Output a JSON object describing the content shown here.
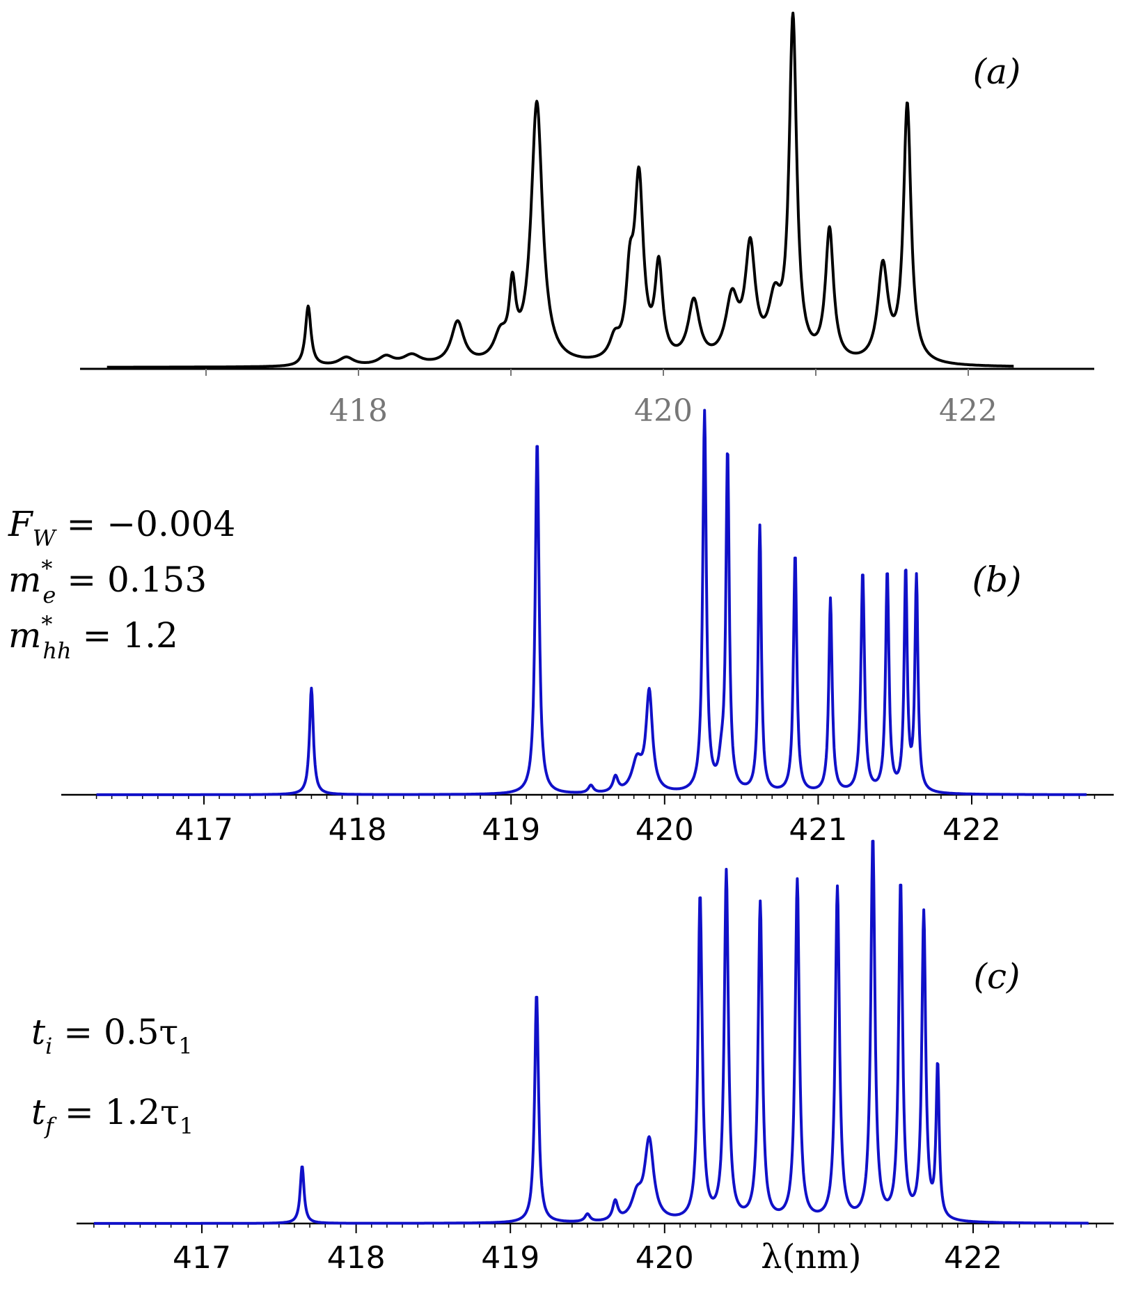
{
  "chart_data": [
    {
      "panel": "a",
      "type": "line",
      "label": "(a)",
      "color": "#000000",
      "tick_color": "#777777",
      "xlim": [
        416.2,
        422.9
      ],
      "ylim": [
        0,
        1.0
      ],
      "x_ticks": [
        417,
        418,
        419,
        420,
        421,
        422
      ],
      "x_tick_labels": [
        "",
        "418",
        "",
        "420",
        "",
        "422"
      ],
      "peaks": [
        [
          417.67,
          0.17,
          0.022
        ],
        [
          417.92,
          0.024,
          0.06
        ],
        [
          418.18,
          0.025,
          0.06
        ],
        [
          418.35,
          0.028,
          0.07
        ],
        [
          418.65,
          0.12,
          0.05
        ],
        [
          418.93,
          0.07,
          0.05
        ],
        [
          419.01,
          0.19,
          0.025
        ],
        [
          419.17,
          0.74,
          0.045
        ],
        [
          419.68,
          0.055,
          0.04
        ],
        [
          419.78,
          0.2,
          0.03
        ],
        [
          419.84,
          0.5,
          0.035
        ],
        [
          419.97,
          0.26,
          0.03
        ],
        [
          420.2,
          0.17,
          0.045
        ],
        [
          420.45,
          0.17,
          0.05
        ],
        [
          420.57,
          0.31,
          0.04
        ],
        [
          420.73,
          0.15,
          0.05
        ],
        [
          420.85,
          0.96,
          0.03
        ],
        [
          421.09,
          0.37,
          0.032
        ],
        [
          421.44,
          0.27,
          0.04
        ],
        [
          421.6,
          0.73,
          0.03
        ]
      ],
      "baseline": 0.004
    },
    {
      "panel": "b",
      "type": "line",
      "label": "(b)",
      "color": "#1010c8",
      "xlim": [
        416.2,
        422.9
      ],
      "ylim": [
        0,
        1.0
      ],
      "x_ticks": [
        417,
        418,
        419,
        420,
        421,
        422
      ],
      "x_tick_labels": [
        "417",
        "418",
        "419",
        "420",
        "421",
        "422"
      ],
      "minor_ticks": true,
      "peaks": [
        [
          417.7,
          0.28,
          0.015
        ],
        [
          419.17,
          0.93,
          0.015
        ],
        [
          419.52,
          0.02,
          0.02
        ],
        [
          419.68,
          0.04,
          0.02
        ],
        [
          419.82,
          0.08,
          0.04
        ],
        [
          419.9,
          0.26,
          0.025
        ],
        [
          420.26,
          1.0,
          0.014
        ],
        [
          420.37,
          0.06,
          0.02
        ],
        [
          420.41,
          0.89,
          0.013
        ],
        [
          420.62,
          0.7,
          0.012
        ],
        [
          420.85,
          0.63,
          0.013
        ],
        [
          421.08,
          0.51,
          0.013
        ],
        [
          421.29,
          0.58,
          0.014
        ],
        [
          421.45,
          0.58,
          0.013
        ],
        [
          421.57,
          0.58,
          0.012
        ],
        [
          421.64,
          0.56,
          0.012
        ]
      ],
      "baseline": 0.0,
      "params": [
        {
          "sym": "F",
          "sub": "W",
          "sup": "",
          "rest": " = −0.004"
        },
        {
          "sym": "m",
          "sub": "e",
          "sup": "*",
          "rest": " = 0.153"
        },
        {
          "sym": "m",
          "sub": "hh",
          "sup": "*",
          "rest": " = 1.2"
        }
      ]
    },
    {
      "panel": "c",
      "type": "line",
      "label": "(c)",
      "color": "#1010c8",
      "xlim": [
        416.2,
        422.9
      ],
      "ylim": [
        0,
        1.0
      ],
      "x_ticks": [
        417,
        418,
        419,
        420,
        421,
        422
      ],
      "x_tick_labels": [
        "417",
        "418",
        "419",
        "420",
        "",
        "422"
      ],
      "minor_ticks": true,
      "xlabel": "λ(nm)",
      "peaks": [
        [
          417.65,
          0.15,
          0.015
        ],
        [
          419.17,
          0.6,
          0.015
        ],
        [
          419.5,
          0.02,
          0.02
        ],
        [
          419.68,
          0.05,
          0.02
        ],
        [
          419.82,
          0.06,
          0.04
        ],
        [
          419.9,
          0.21,
          0.035
        ],
        [
          420.23,
          0.85,
          0.016
        ],
        [
          420.4,
          0.91,
          0.016
        ],
        [
          420.62,
          0.83,
          0.016
        ],
        [
          420.86,
          0.89,
          0.016
        ],
        [
          421.12,
          0.87,
          0.016
        ],
        [
          421.35,
          1.0,
          0.016
        ],
        [
          421.53,
          0.88,
          0.015
        ],
        [
          421.68,
          0.8,
          0.015
        ],
        [
          421.77,
          0.4,
          0.012
        ]
      ],
      "baseline": 0.0,
      "params": [
        {
          "sym": "t",
          "sub": "i",
          "sup": "",
          "rest": " = 0.5τ",
          "rest_sub": "1"
        },
        {
          "sym": "t",
          "sub": "f",
          "sup": "",
          "rest": " = 1.2τ",
          "rest_sub": "1"
        }
      ]
    }
  ]
}
